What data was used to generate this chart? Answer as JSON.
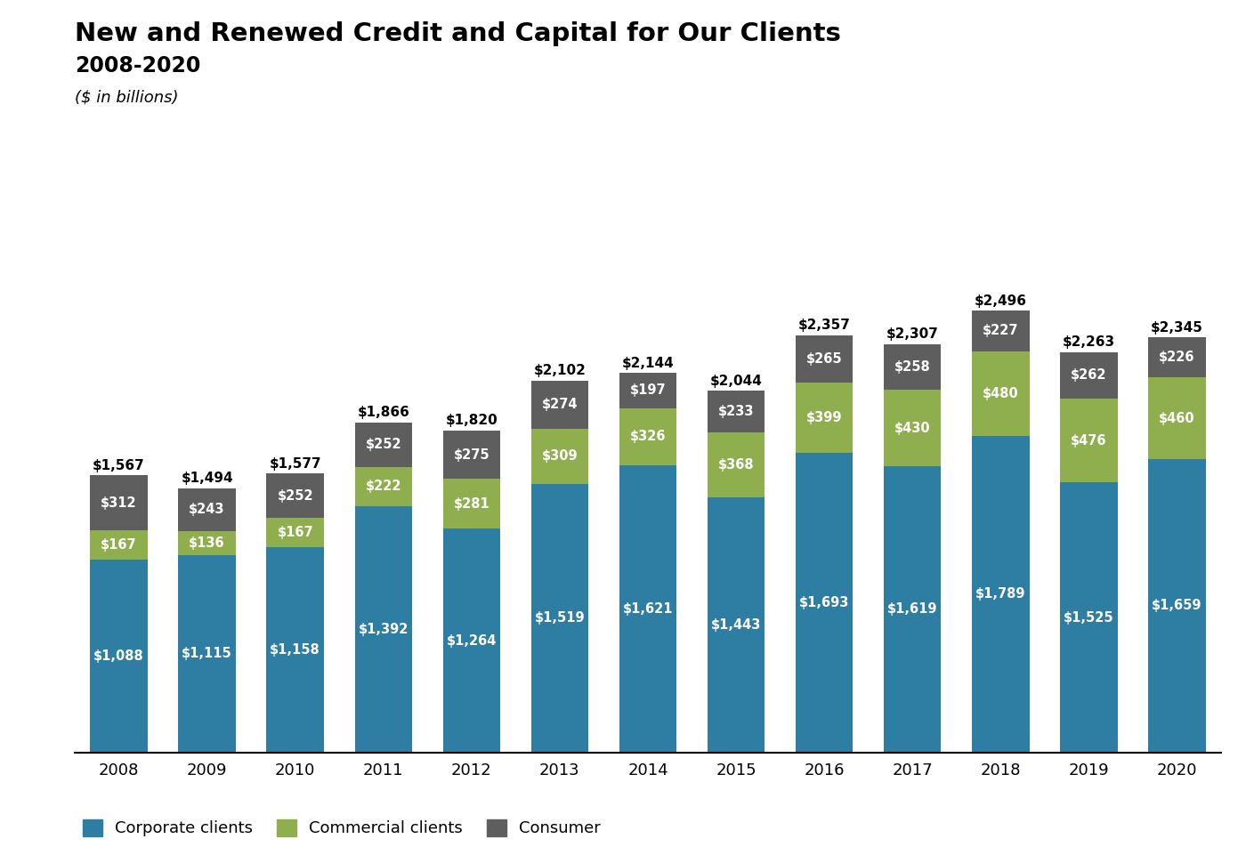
{
  "title": "New and Renewed Credit and Capital for Our Clients",
  "subtitle": "2008-2020",
  "units": "($ in billions)",
  "years": [
    2008,
    2009,
    2010,
    2011,
    2012,
    2013,
    2014,
    2015,
    2016,
    2017,
    2018,
    2019,
    2020
  ],
  "corporate": [
    1088,
    1115,
    1158,
    1392,
    1264,
    1519,
    1621,
    1443,
    1693,
    1619,
    1789,
    1525,
    1659
  ],
  "commercial": [
    167,
    136,
    167,
    222,
    281,
    309,
    326,
    368,
    399,
    430,
    480,
    476,
    460
  ],
  "consumer": [
    312,
    243,
    252,
    252,
    275,
    274,
    197,
    233,
    265,
    258,
    227,
    262,
    226
  ],
  "totals": [
    1567,
    1494,
    1577,
    1866,
    1820,
    2102,
    2144,
    2044,
    2357,
    2307,
    2496,
    2263,
    2345
  ],
  "color_corporate": "#2e7da3",
  "color_commercial": "#8faf4e",
  "color_consumer": "#5e5e5e",
  "background_color": "#ffffff",
  "legend_labels": [
    "Corporate clients",
    "Commercial clients",
    "Consumer"
  ],
  "title_fontsize": 21,
  "subtitle_fontsize": 17,
  "units_fontsize": 13,
  "bar_label_fontsize": 10.5,
  "total_label_fontsize": 11
}
